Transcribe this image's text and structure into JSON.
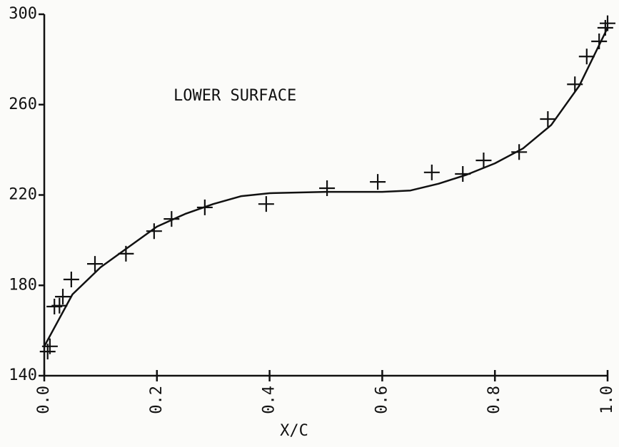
{
  "chart_data": {
    "type": "scatter",
    "annotation": "LOWER SURFACE",
    "x_label": "X/C",
    "xlim": [
      0,
      1
    ],
    "ylim": [
      140,
      300
    ],
    "xticks": [
      {
        "value": 0,
        "label": "0.0"
      },
      0.2,
      0.4,
      0.6,
      0.8,
      {
        "value": 1,
        "label": "1.0"
      }
    ],
    "yticks": [
      140,
      180,
      220,
      260,
      300
    ],
    "series": [
      {
        "type": "scatter",
        "color": "#111111",
        "x": [
          0.006,
          0.01,
          0.018,
          0.027,
          0.033,
          0.048,
          0.09,
          0.145,
          0.195,
          0.226,
          0.285,
          0.394,
          0.502,
          0.592,
          0.688,
          0.743,
          0.78,
          0.843,
          0.894,
          0.942,
          0.963,
          0.985,
          0.996,
          1.0
        ],
        "values": [
          150.7,
          153,
          170.6,
          171,
          175,
          182.6,
          189.5,
          194,
          204,
          209.4,
          214.5,
          216,
          223,
          225.8,
          230,
          229.3,
          235.3,
          239,
          253.6,
          269,
          281.3,
          288,
          294,
          296
        ]
      },
      {
        "type": "line",
        "color": "#111111",
        "x": [
          0,
          0.05,
          0.1,
          0.15,
          0.2,
          0.25,
          0.3,
          0.35,
          0.4,
          0.5,
          0.6,
          0.65,
          0.7,
          0.75,
          0.8,
          0.85,
          0.9,
          0.95,
          1.0
        ],
        "values": [
          153,
          176,
          188,
          197,
          206,
          211.6,
          216,
          219.5,
          220.8,
          221.4,
          221.4,
          222,
          225,
          229,
          234,
          240.6,
          251,
          268.4,
          294
        ]
      }
    ]
  }
}
